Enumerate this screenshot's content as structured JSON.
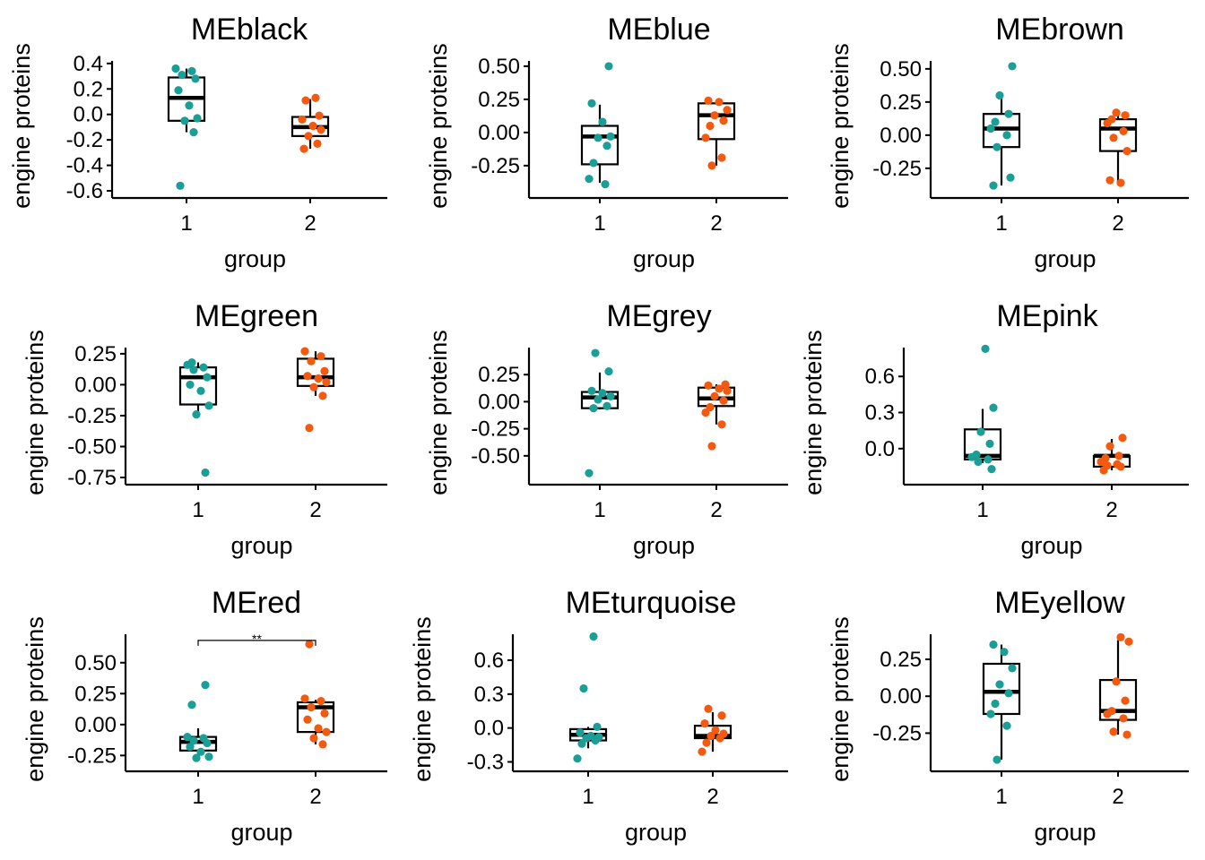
{
  "colors": {
    "group1": "#1a9e96",
    "group2": "#f45a0f",
    "axis": "#000000"
  },
  "chart_data": [
    {
      "type": "box",
      "title": "MEblack",
      "xlabel": "group",
      "ylabel": "engine proteins",
      "categories": [
        "1",
        "2"
      ],
      "ylim": [
        -0.6,
        0.42
      ],
      "yticks": [
        0.4,
        0.2,
        0.0,
        -0.2,
        -0.4,
        -0.6
      ],
      "ytick_labels": [
        "0.4",
        "0.2",
        "0.0",
        "-0.2",
        "-0.4",
        "-0.6"
      ],
      "boxes": [
        {
          "group": "1",
          "q1": -0.05,
          "median": 0.13,
          "q3": 0.29,
          "whisker_low": -0.14,
          "whisker_high": 0.36,
          "points": [
            0.36,
            0.34,
            0.31,
            0.28,
            0.19,
            0.07,
            -0.03,
            -0.05,
            -0.14,
            -0.56
          ]
        },
        {
          "group": "2",
          "q1": -0.17,
          "median": -0.1,
          "q3": -0.02,
          "whisker_low": -0.27,
          "whisker_high": 0.12,
          "points": [
            0.13,
            0.11,
            -0.01,
            -0.04,
            -0.09,
            -0.12,
            -0.17,
            -0.23,
            -0.27
          ]
        }
      ]
    },
    {
      "type": "box",
      "title": "MEblue",
      "xlabel": "group",
      "ylabel": "engine proteins",
      "categories": [
        "1",
        "2"
      ],
      "ylim": [
        -0.44,
        0.54
      ],
      "yticks": [
        0.5,
        0.25,
        0.0,
        -0.25
      ],
      "ytick_labels": [
        "0.50",
        "0.25",
        "0.00",
        "-0.25"
      ],
      "boxes": [
        {
          "group": "1",
          "q1": -0.24,
          "median": -0.03,
          "q3": 0.05,
          "whisker_low": -0.38,
          "whisker_high": 0.21,
          "points": [
            0.5,
            0.22,
            0.08,
            -0.03,
            -0.04,
            -0.1,
            -0.23,
            -0.35,
            -0.39
          ]
        },
        {
          "group": "2",
          "q1": -0.05,
          "median": 0.13,
          "q3": 0.22,
          "whisker_low": -0.25,
          "whisker_high": 0.24,
          "points": [
            0.24,
            0.23,
            0.17,
            0.13,
            0.09,
            0.05,
            -0.04,
            -0.19,
            -0.25
          ]
        }
      ]
    },
    {
      "type": "box",
      "title": "MEbrown",
      "xlabel": "group",
      "ylabel": "engine proteins",
      "categories": [
        "1",
        "2"
      ],
      "ylim": [
        -0.42,
        0.56
      ],
      "yticks": [
        0.5,
        0.25,
        0.0,
        -0.25
      ],
      "ytick_labels": [
        "0.50",
        "0.25",
        "0.00",
        "-0.25"
      ],
      "boxes": [
        {
          "group": "1",
          "q1": -0.09,
          "median": 0.05,
          "q3": 0.16,
          "whisker_low": -0.38,
          "whisker_high": 0.3,
          "points": [
            0.52,
            0.3,
            0.16,
            0.1,
            0.05,
            0.0,
            -0.09,
            -0.32,
            -0.38
          ]
        },
        {
          "group": "2",
          "q1": -0.12,
          "median": 0.05,
          "q3": 0.12,
          "whisker_low": -0.36,
          "whisker_high": 0.16,
          "points": [
            0.17,
            0.15,
            0.12,
            0.09,
            0.03,
            -0.02,
            -0.12,
            -0.34,
            -0.36
          ]
        }
      ]
    },
    {
      "type": "box",
      "title": "MEgreen",
      "xlabel": "group",
      "ylabel": "engine proteins",
      "categories": [
        "1",
        "2"
      ],
      "ylim": [
        -0.75,
        0.3
      ],
      "yticks": [
        0.25,
        0.0,
        -0.25,
        -0.5,
        -0.75
      ],
      "ytick_labels": [
        "0.25",
        "0.00",
        "-0.25",
        "-0.50",
        "-0.75"
      ],
      "boxes": [
        {
          "group": "1",
          "q1": -0.16,
          "median": 0.06,
          "q3": 0.14,
          "whisker_low": -0.25,
          "whisker_high": 0.18,
          "points": [
            0.18,
            0.16,
            0.14,
            0.12,
            0.06,
            0.0,
            -0.05,
            -0.17,
            -0.24,
            -0.71
          ]
        },
        {
          "group": "2",
          "q1": -0.01,
          "median": 0.06,
          "q3": 0.21,
          "whisker_low": -0.09,
          "whisker_high": 0.27,
          "points": [
            0.27,
            0.23,
            0.19,
            0.11,
            0.07,
            0.05,
            0.02,
            -0.02,
            -0.09,
            -0.35
          ]
        }
      ]
    },
    {
      "type": "box",
      "title": "MEgrey",
      "xlabel": "group",
      "ylabel": "engine proteins",
      "categories": [
        "1",
        "2"
      ],
      "ylim": [
        -0.7,
        0.5
      ],
      "yticks": [
        0.25,
        0.0,
        -0.25,
        -0.5
      ],
      "ytick_labels": [
        "0.25",
        "0.00",
        "-0.25",
        "-0.50"
      ],
      "boxes": [
        {
          "group": "1",
          "q1": -0.06,
          "median": 0.04,
          "q3": 0.09,
          "whisker_low": -0.07,
          "whisker_high": 0.27,
          "points": [
            0.45,
            0.28,
            0.1,
            0.08,
            0.05,
            0.02,
            -0.04,
            -0.06,
            -0.66
          ]
        },
        {
          "group": "2",
          "q1": -0.04,
          "median": 0.03,
          "q3": 0.13,
          "whisker_low": -0.21,
          "whisker_high": 0.16,
          "points": [
            0.16,
            0.15,
            0.12,
            0.1,
            0.05,
            0.01,
            -0.05,
            -0.1,
            -0.21,
            -0.41
          ]
        }
      ]
    },
    {
      "type": "box",
      "title": "MEpink",
      "xlabel": "group",
      "ylabel": "engine proteins",
      "categories": [
        "1",
        "2"
      ],
      "ylim": [
        -0.24,
        0.84
      ],
      "yticks": [
        0.6,
        0.3,
        0.0
      ],
      "ytick_labels": [
        "0.6",
        "0.3",
        "0.0"
      ],
      "boxes": [
        {
          "group": "1",
          "q1": -0.09,
          "median": -0.06,
          "q3": 0.16,
          "whisker_low": -0.12,
          "whisker_high": 0.33,
          "points": [
            0.83,
            0.34,
            0.14,
            0.04,
            -0.05,
            -0.07,
            -0.09,
            -0.11,
            -0.17
          ]
        },
        {
          "group": "2",
          "q1": -0.15,
          "median": -0.06,
          "q3": -0.06,
          "whisker_low": -0.18,
          "whisker_high": 0.08,
          "points": [
            0.09,
            0.02,
            -0.06,
            -0.08,
            -0.11,
            -0.13,
            -0.14,
            -0.15,
            -0.18
          ]
        }
      ]
    },
    {
      "type": "box",
      "title": "MEred",
      "xlabel": "group",
      "ylabel": "engine proteins",
      "categories": [
        "1",
        "2"
      ],
      "ylim": [
        -0.32,
        0.73
      ],
      "yticks": [
        0.5,
        0.25,
        0.0,
        -0.25
      ],
      "ytick_labels": [
        "0.50",
        "0.25",
        "0.00",
        "-0.25"
      ],
      "significance": {
        "label": "**",
        "y": 0.68
      },
      "boxes": [
        {
          "group": "1",
          "q1": -0.21,
          "median": -0.14,
          "q3": -0.1,
          "whisker_low": -0.27,
          "whisker_high": -0.03,
          "points": [
            0.32,
            0.16,
            -0.1,
            -0.11,
            -0.13,
            -0.15,
            -0.18,
            -0.22,
            -0.26,
            -0.27
          ]
        },
        {
          "group": "2",
          "q1": -0.06,
          "median": 0.14,
          "q3": 0.18,
          "whisker_low": -0.16,
          "whisker_high": 0.2,
          "points": [
            0.65,
            0.21,
            0.19,
            0.14,
            0.09,
            0.04,
            -0.03,
            -0.06,
            -0.11,
            -0.16
          ]
        }
      ]
    },
    {
      "type": "box",
      "title": "MEturquoise",
      "xlabel": "group",
      "ylabel": "engine proteins",
      "categories": [
        "1",
        "2"
      ],
      "ylim": [
        -0.32,
        0.83
      ],
      "yticks": [
        0.6,
        0.3,
        0.0,
        -0.3
      ],
      "ytick_labels": [
        "0.6",
        "0.3",
        "0.0",
        "-0.3"
      ],
      "boxes": [
        {
          "group": "1",
          "q1": -0.11,
          "median": -0.06,
          "q3": -0.01,
          "whisker_low": -0.18,
          "whisker_high": 0.01,
          "points": [
            0.81,
            0.35,
            0.01,
            -0.04,
            -0.07,
            -0.08,
            -0.09,
            -0.11,
            -0.14,
            -0.27
          ]
        },
        {
          "group": "2",
          "q1": -0.09,
          "median": -0.07,
          "q3": 0.02,
          "whisker_low": -0.21,
          "whisker_high": 0.14,
          "points": [
            0.17,
            0.11,
            0.04,
            -0.02,
            -0.05,
            -0.07,
            -0.09,
            -0.13,
            -0.21
          ]
        }
      ]
    },
    {
      "type": "box",
      "title": "MEyellow",
      "xlabel": "group",
      "ylabel": "engine proteins",
      "categories": [
        "1",
        "2"
      ],
      "ylim": [
        -0.46,
        0.42
      ],
      "yticks": [
        0.25,
        0.0,
        -0.25
      ],
      "ytick_labels": [
        "0.25",
        "0.00",
        "-0.25"
      ],
      "boxes": [
        {
          "group": "1",
          "q1": -0.12,
          "median": 0.03,
          "q3": 0.22,
          "whisker_low": -0.43,
          "whisker_high": 0.35,
          "points": [
            0.35,
            0.3,
            0.19,
            0.08,
            0.02,
            -0.05,
            -0.12,
            -0.2,
            -0.43
          ]
        },
        {
          "group": "2",
          "q1": -0.16,
          "median": -0.1,
          "q3": 0.11,
          "whisker_low": -0.26,
          "whisker_high": 0.38,
          "points": [
            0.4,
            0.37,
            0.1,
            -0.03,
            -0.1,
            -0.12,
            -0.15,
            -0.24,
            -0.26
          ]
        }
      ]
    }
  ]
}
